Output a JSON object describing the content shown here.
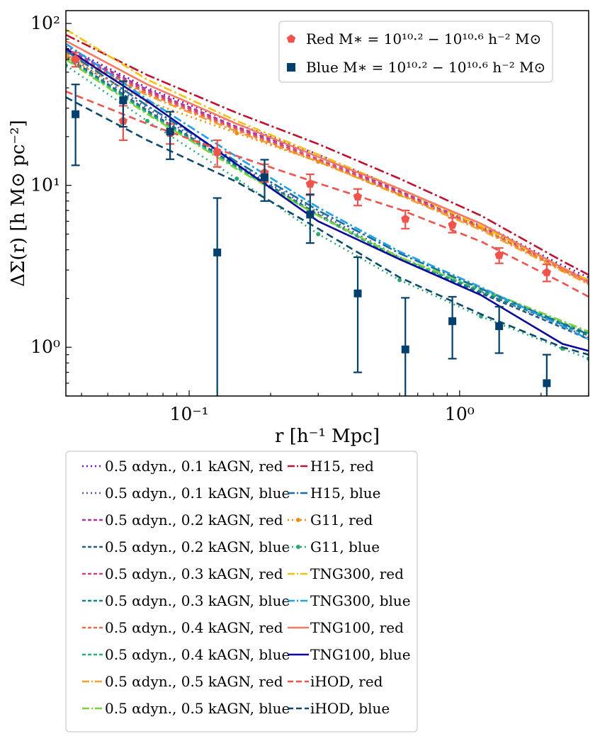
{
  "chart_data": {
    "type": "line",
    "title": "",
    "xlabel": "r [h⁻¹ Mpc]",
    "ylabel": "ΔΣ(r) [h M⊙ pc⁻²]",
    "xscale": "log",
    "yscale": "log",
    "xlim": [
      0.035,
      3.0
    ],
    "ylim": [
      0.5,
      120
    ],
    "x_ticks": [
      {
        "value": 0.1,
        "label": "10⁻¹"
      },
      {
        "value": 1.0,
        "label": "10⁰"
      }
    ],
    "y_ticks": [
      {
        "value": 1,
        "label": "10⁰"
      },
      {
        "value": 10,
        "label": "10¹"
      },
      {
        "value": 100,
        "label": "10²"
      }
    ],
    "colors": {
      "red_marker": "#f0524c",
      "blue_marker": "#003f6e"
    },
    "x": [
      0.035,
      0.07,
      0.15,
      0.3,
      0.6,
      1.2,
      2.4,
      3.0
    ],
    "series": [
      {
        "name": "0.5 αdyn., 0.1 kAGN, red",
        "color": "#7a0fbf",
        "dash": "2,5",
        "marker": "none",
        "values": [
          72,
          40,
          24,
          15.5,
          9.5,
          5.8,
          3.2,
          2.7
        ]
      },
      {
        "name": "0.5 αdyn., 0.1 kAGN, blue",
        "color": "#545c9f",
        "dash": "2,5",
        "marker": "none",
        "values": [
          65,
          30,
          13.5,
          6.8,
          3.6,
          2.2,
          1.35,
          1.15
        ]
      },
      {
        "name": "0.5 αdyn., 0.2 kAGN, red",
        "color": "#b0349f",
        "dash": "6,4",
        "marker": "none",
        "values": [
          70,
          39,
          23,
          15,
          9.2,
          5.6,
          3.1,
          2.6
        ]
      },
      {
        "name": "0.5 αdyn., 0.2 kAGN, blue",
        "color": "#2d5e82",
        "dash": "6,4",
        "marker": "none",
        "values": [
          63,
          29,
          13.2,
          6.6,
          3.5,
          2.15,
          1.32,
          1.12
        ]
      },
      {
        "name": "0.5 αdyn., 0.3 kAGN, red",
        "color": "#d0447a",
        "dash": "6,4",
        "marker": "none",
        "values": [
          68,
          38,
          22.5,
          14.5,
          9.0,
          5.5,
          3.05,
          2.55
        ]
      },
      {
        "name": "0.5 αdyn., 0.3 kAGN, blue",
        "color": "#0f8585",
        "dash": "6,4",
        "marker": "none",
        "values": [
          62,
          28.5,
          13,
          6.5,
          3.5,
          2.2,
          1.38,
          1.18
        ]
      },
      {
        "name": "0.5 αdyn., 0.4 kAGN, red",
        "color": "#ef6a48",
        "dash": "6,4",
        "marker": "none",
        "values": [
          66,
          37,
          22,
          14.2,
          8.8,
          5.4,
          3.0,
          2.5
        ]
      },
      {
        "name": "0.5 αdyn., 0.4 kAGN, blue",
        "color": "#27b078",
        "dash": "6,4",
        "marker": "none",
        "values": [
          61,
          28,
          12.8,
          6.5,
          3.55,
          2.25,
          1.42,
          1.22
        ]
      },
      {
        "name": "0.5 αdyn., 0.5 kAGN, red",
        "color": "#f5a030",
        "dash": "12,4,3,4",
        "marker": "none",
        "values": [
          64,
          36,
          21.5,
          14,
          8.7,
          5.3,
          2.95,
          2.45
        ]
      },
      {
        "name": "0.5 αdyn., 0.5 kAGN, blue",
        "color": "#7bd33c",
        "dash": "12,4,3,4",
        "marker": "none",
        "values": [
          60,
          27.5,
          12.6,
          6.5,
          3.6,
          2.3,
          1.45,
          1.25
        ]
      },
      {
        "name": "H15, red",
        "color": "#c0122e",
        "dash": "14,4,3,4",
        "marker": "none",
        "values": [
          85,
          48,
          28,
          18,
          11,
          6.5,
          3.4,
          2.8
        ]
      },
      {
        "name": "H15, blue",
        "color": "#1a6e9c",
        "dash": "14,4,3,4",
        "marker": "none",
        "values": [
          68,
          31,
          14,
          7.0,
          3.8,
          2.3,
          1.4,
          1.2
        ]
      },
      {
        "name": "G11, red",
        "color": "#f08c10",
        "dash": "2,5",
        "marker": "dot",
        "values": [
          62,
          33,
          21,
          14,
          8.8,
          5.5,
          3.0,
          2.5
        ]
      },
      {
        "name": "G11, blue",
        "color": "#2da86e",
        "dash": "2,5",
        "marker": "dot",
        "values": [
          55,
          25,
          11,
          5.0,
          2.6,
          1.55,
          0.98,
          0.85
        ]
      },
      {
        "name": "TNG300, red",
        "color": "#f5c10e",
        "dash": "12,4,3,4",
        "marker": "none",
        "values": [
          92,
          45,
          25,
          15.5,
          9.5,
          5.6,
          3.1,
          2.6
        ]
      },
      {
        "name": "TNG300, blue",
        "color": "#1e9fe8",
        "dash": "12,4,3,4",
        "marker": "none",
        "values": [
          75,
          34,
          15,
          7.3,
          3.9,
          2.35,
          1.35,
          1.12
        ]
      },
      {
        "name": "TNG100, red",
        "color": "#f47c64",
        "dash": "",
        "marker": "none",
        "values": [
          78,
          42,
          24,
          15,
          9.5,
          5.8,
          3.1,
          2.5
        ]
      },
      {
        "name": "TNG100, blue",
        "color": "#0a0a9a",
        "dash": "",
        "marker": "none",
        "values": [
          70,
          33,
          13.5,
          6.0,
          3.5,
          2.1,
          1.05,
          0.95
        ]
      },
      {
        "name": "iHOD, red",
        "color": "#f0524c",
        "dash": "10,6",
        "marker": "none",
        "values": [
          38,
          24,
          15.2,
          10.3,
          7.1,
          4.5,
          2.5,
          2.05
        ]
      },
      {
        "name": "iHOD, blue",
        "color": "#0b4a6e",
        "dash": "10,6",
        "marker": "none",
        "values": [
          35,
          19,
          10.5,
          5.4,
          2.7,
          1.6,
          1.0,
          0.9
        ]
      }
    ],
    "observations": [
      {
        "name": "Red M* = 10^10.2 − 10^10.6 h^-2 M⊙",
        "legend_label": "Red M∗ = 10¹⁰·² − 10¹⁰·⁶ h⁻² M⊙",
        "marker": "pentagon",
        "color": "#f0524c",
        "x": [
          0.038,
          0.057,
          0.085,
          0.127,
          0.19,
          0.28,
          0.42,
          0.63,
          0.94,
          1.4,
          2.1
        ],
        "y": [
          60,
          25,
          21,
          16,
          12,
          10.2,
          8.5,
          6.2,
          5.7,
          3.7,
          2.9
        ],
        "err_low": [
          6,
          6,
          3,
          3,
          1.5,
          1.5,
          1,
          0.8,
          0.6,
          0.4,
          0.35
        ],
        "err_high": [
          6,
          6,
          3,
          3,
          1.5,
          1.5,
          1,
          0.8,
          0.6,
          0.4,
          0.35
        ]
      },
      {
        "name": "Blue M* = 10^10.2 − 10^10.6 h^-2 M⊙",
        "legend_label": "Blue M∗ = 10¹⁰·² − 10¹⁰·⁶ h⁻² M⊙",
        "marker": "square",
        "color": "#003f6e",
        "x": [
          0.038,
          0.057,
          0.085,
          0.127,
          0.19,
          0.28,
          0.42,
          0.63,
          0.94,
          1.4,
          2.1
        ],
        "y": [
          27.5,
          33.5,
          21.5,
          3.85,
          11.2,
          6.6,
          2.15,
          0.97,
          1.45,
          1.35,
          0.6
        ],
        "err_low": [
          14.2,
          10.5,
          7,
          3.8,
          3.2,
          2.2,
          1.45,
          0.55,
          0.6,
          0.43,
          0.2
        ],
        "err_high": [
          14.5,
          10.5,
          7,
          4.5,
          3.2,
          2.2,
          1.45,
          1.05,
          0.6,
          0.43,
          0.3
        ]
      }
    ],
    "legend_main": [
      "Red M∗ = 10¹⁰·² − 10¹⁰·⁶ h⁻² M⊙",
      "Blue M∗ = 10¹⁰·² − 10¹⁰·⁶ h⁻² M⊙"
    ],
    "legend_main_position": "upper-right",
    "legend_lines_position": "below-plot"
  }
}
